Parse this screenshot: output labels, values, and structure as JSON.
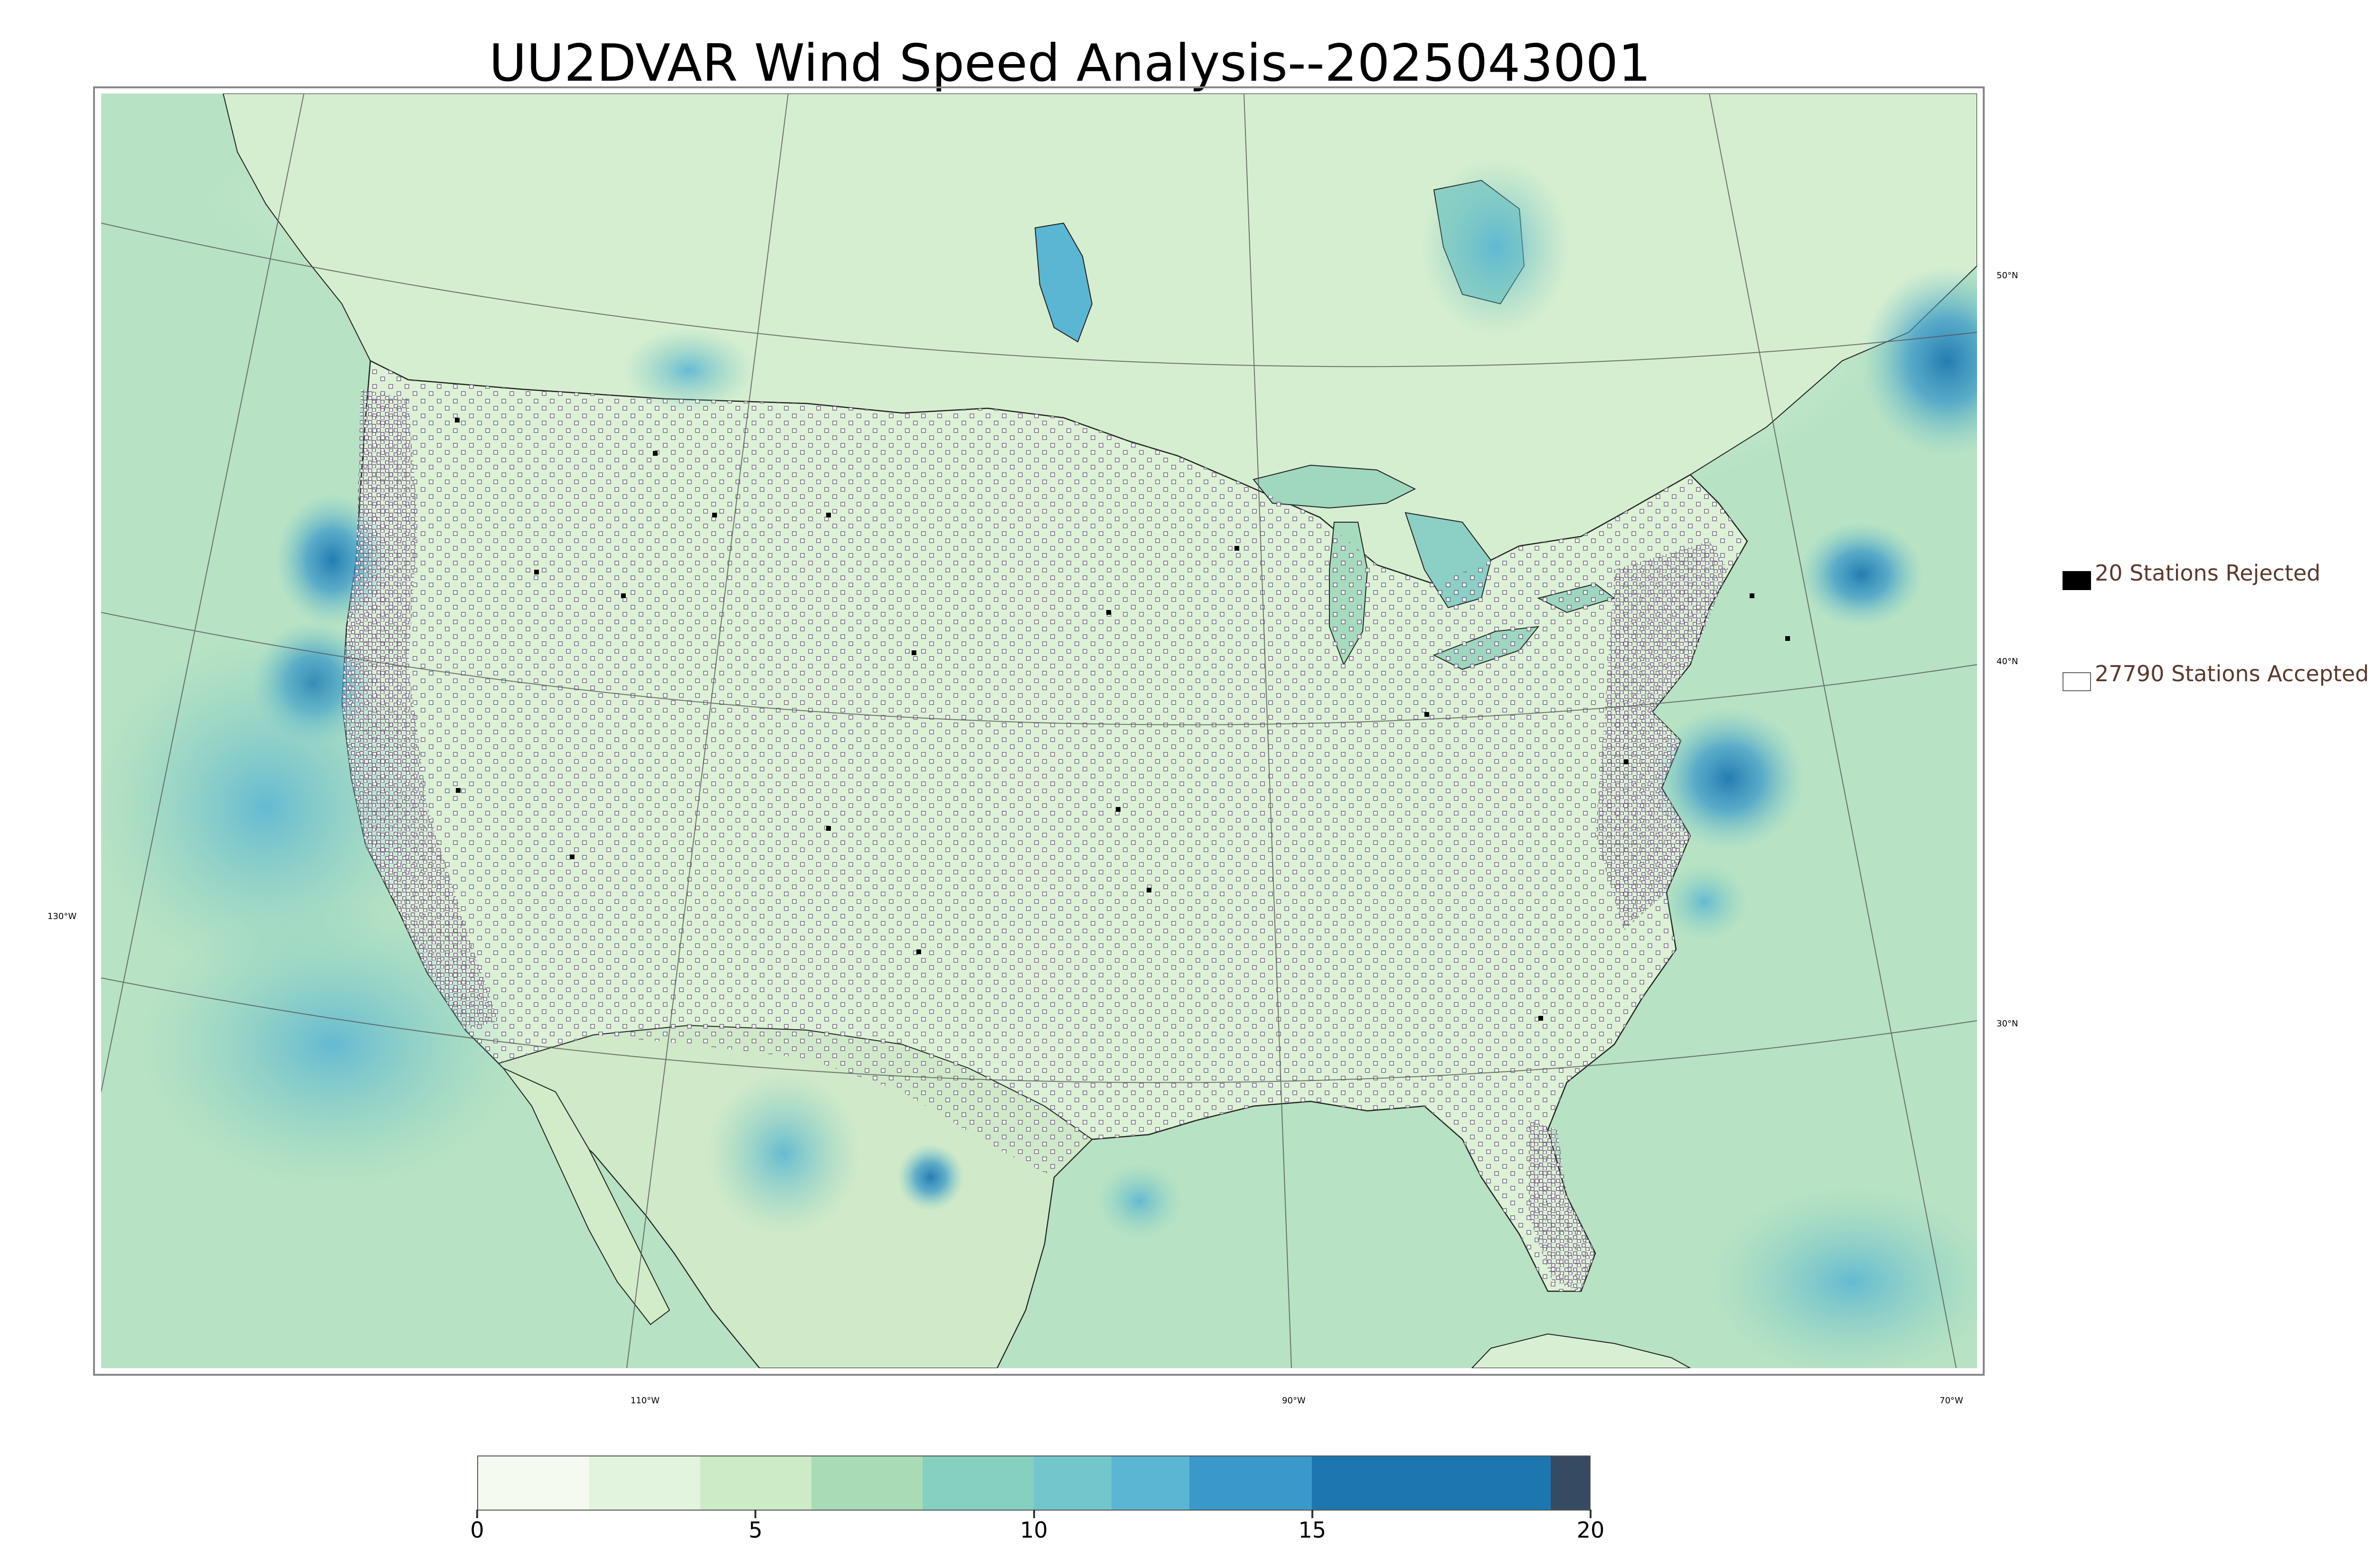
{
  "title": "UU2DVAR Wind Speed Analysis--2025043001",
  "legend": {
    "rejected": {
      "label": "20 Stations Rejected",
      "color": "#000000"
    },
    "accepted": {
      "label": "27790 Stations Accepted",
      "color": "#ffffff"
    }
  },
  "graticule": {
    "latitudes": [
      "50°N",
      "40°N",
      "30°N"
    ],
    "longitudes": [
      "130°W",
      "110°W",
      "90°W",
      "70°W"
    ]
  },
  "colorbar": {
    "min": 0,
    "max": 20,
    "ticks": [
      "0",
      "5",
      "10",
      "15",
      "20"
    ],
    "segments": [
      {
        "from": 0,
        "to": 2,
        "color": "#f4faef"
      },
      {
        "from": 2,
        "to": 4,
        "color": "#e2f4dd"
      },
      {
        "from": 4,
        "to": 6,
        "color": "#ccebc6"
      },
      {
        "from": 6,
        "to": 8,
        "color": "#a9dcb6"
      },
      {
        "from": 8,
        "to": 10,
        "color": "#86d0c0"
      },
      {
        "from": 10,
        "to": 11.4,
        "color": "#73c6cc"
      },
      {
        "from": 11.4,
        "to": 12.8,
        "color": "#5bb6d4"
      },
      {
        "from": 12.8,
        "to": 15,
        "color": "#3a99c9"
      },
      {
        "from": 15,
        "to": 19.3,
        "color": "#1c77b1"
      },
      {
        "from": 19.3,
        "to": 20,
        "color": "#364b61"
      }
    ]
  },
  "colors": {
    "land_base": "#d8efd3",
    "ocean_base": "#b7e2c4",
    "strong_wind": "#5bb6d4",
    "very_strong_wind": "#1c77b1",
    "boundary": "#222222",
    "station_edge": "#6a5a78"
  }
}
